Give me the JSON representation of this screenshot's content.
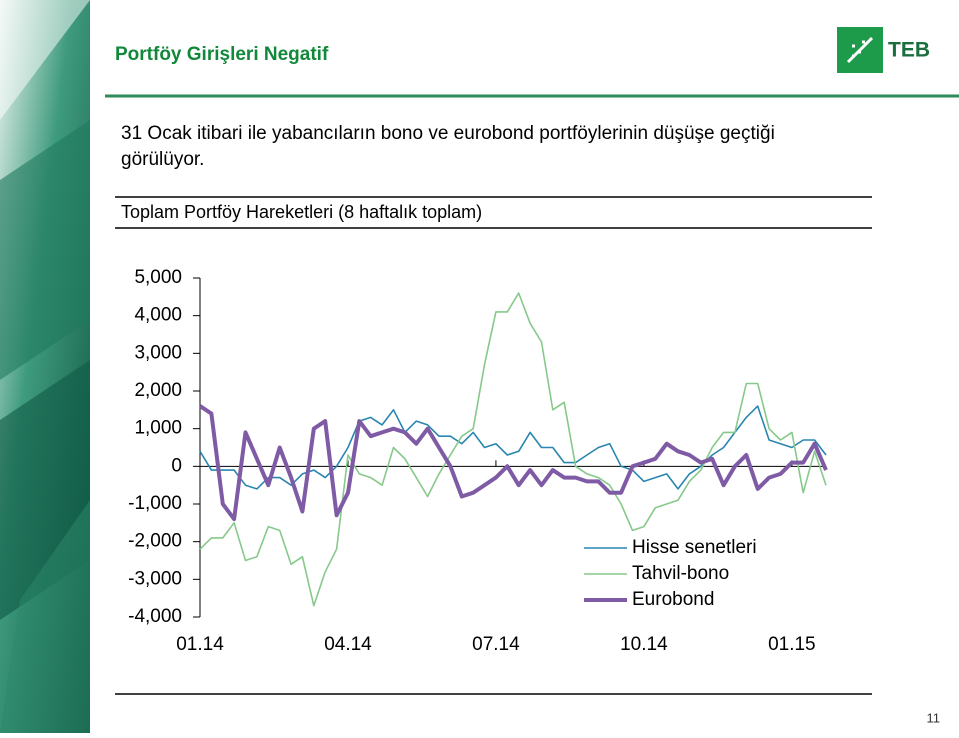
{
  "header": {
    "title": "Portföy Girişleri Negatif",
    "logo_text": "TEB"
  },
  "body_text": [
    "31 Ocak itibari ile yabancıların bono ve eurobond portföylerinin düşüşe geçtiği",
    "görülüyor."
  ],
  "chart_data": {
    "type": "line",
    "title": "Toplam Portföy Hareketleri (8 haftalık toplam)",
    "categories": [
      "01.14",
      null,
      null,
      null,
      null,
      null,
      null,
      null,
      null,
      null,
      null,
      null,
      null,
      "04.14",
      null,
      null,
      null,
      null,
      null,
      null,
      null,
      null,
      null,
      null,
      null,
      null,
      "07.14",
      null,
      null,
      null,
      null,
      null,
      null,
      null,
      null,
      null,
      null,
      null,
      null,
      "10.14",
      null,
      null,
      null,
      null,
      null,
      null,
      null,
      null,
      null,
      null,
      null,
      null,
      "01.15",
      null,
      null,
      null
    ],
    "series": [
      {
        "name": "Hisse senetleri",
        "color": "#2a86b0",
        "values": [
          400,
          -100,
          -100,
          -100,
          -500,
          -600,
          -300,
          -300,
          -500,
          -200,
          -100,
          -300,
          0,
          500,
          1200,
          1300,
          1100,
          1500,
          900,
          1200,
          1100,
          800,
          800,
          600,
          900,
          500,
          600,
          300,
          400,
          900,
          500,
          500,
          100,
          100,
          300,
          500,
          600,
          0,
          -100,
          -400,
          -300,
          -200,
          -600,
          -200,
          0,
          300,
          500,
          900,
          1300,
          1600,
          700,
          600,
          500,
          700,
          700,
          300
        ]
      },
      {
        "name": "Tahvil-bono",
        "color": "#86c98a",
        "values": [
          -2200,
          -1900,
          -1900,
          -1500,
          -2500,
          -2400,
          -1600,
          -1700,
          -2600,
          -2400,
          -3700,
          -2800,
          -2200,
          300,
          -200,
          -300,
          -500,
          500,
          200,
          -300,
          -800,
          -200,
          300,
          800,
          1000,
          2700,
          4100,
          4100,
          4600,
          3800,
          3300,
          1500,
          1700,
          0,
          -200,
          -300,
          -500,
          -1000,
          -1700,
          -1600,
          -1100,
          -1000,
          -900,
          -400,
          -100,
          500,
          900,
          900,
          2200,
          2200,
          1000,
          700,
          900,
          -700,
          400,
          -500
        ]
      },
      {
        "name": "Eurobond",
        "color": "#7f5ba6",
        "values": [
          1600,
          1400,
          -1000,
          -1400,
          900,
          200,
          -500,
          500,
          -300,
          -1200,
          1000,
          1200,
          -1300,
          -700,
          1200,
          800,
          900,
          1000,
          900,
          600,
          1000,
          500,
          0,
          -800,
          -700,
          -500,
          -300,
          0,
          -500,
          -100,
          -500,
          -100,
          -300,
          -300,
          -400,
          -400,
          -700,
          -700,
          0,
          100,
          200,
          600,
          400,
          300,
          100,
          200,
          -500,
          0,
          300,
          -600,
          -300,
          -200,
          100,
          100,
          600,
          -100
        ]
      }
    ],
    "ylim": [
      -4000,
      5000
    ],
    "yticks": [
      {
        "value": -4000,
        "label": "-4,000"
      },
      {
        "value": -3000,
        "label": "-3,000"
      },
      {
        "value": -2000,
        "label": "-2,000"
      },
      {
        "value": -1000,
        "label": "-1,000"
      },
      0,
      {
        "value": 1000,
        "label": "1,000"
      },
      {
        "value": 2000,
        "label": "2,000"
      },
      {
        "value": 3000,
        "label": "3,000"
      },
      {
        "value": 4000,
        "label": "4,000"
      },
      {
        "value": 5000,
        "label": "5,000"
      }
    ],
    "grid": false
  },
  "page_number": "11"
}
